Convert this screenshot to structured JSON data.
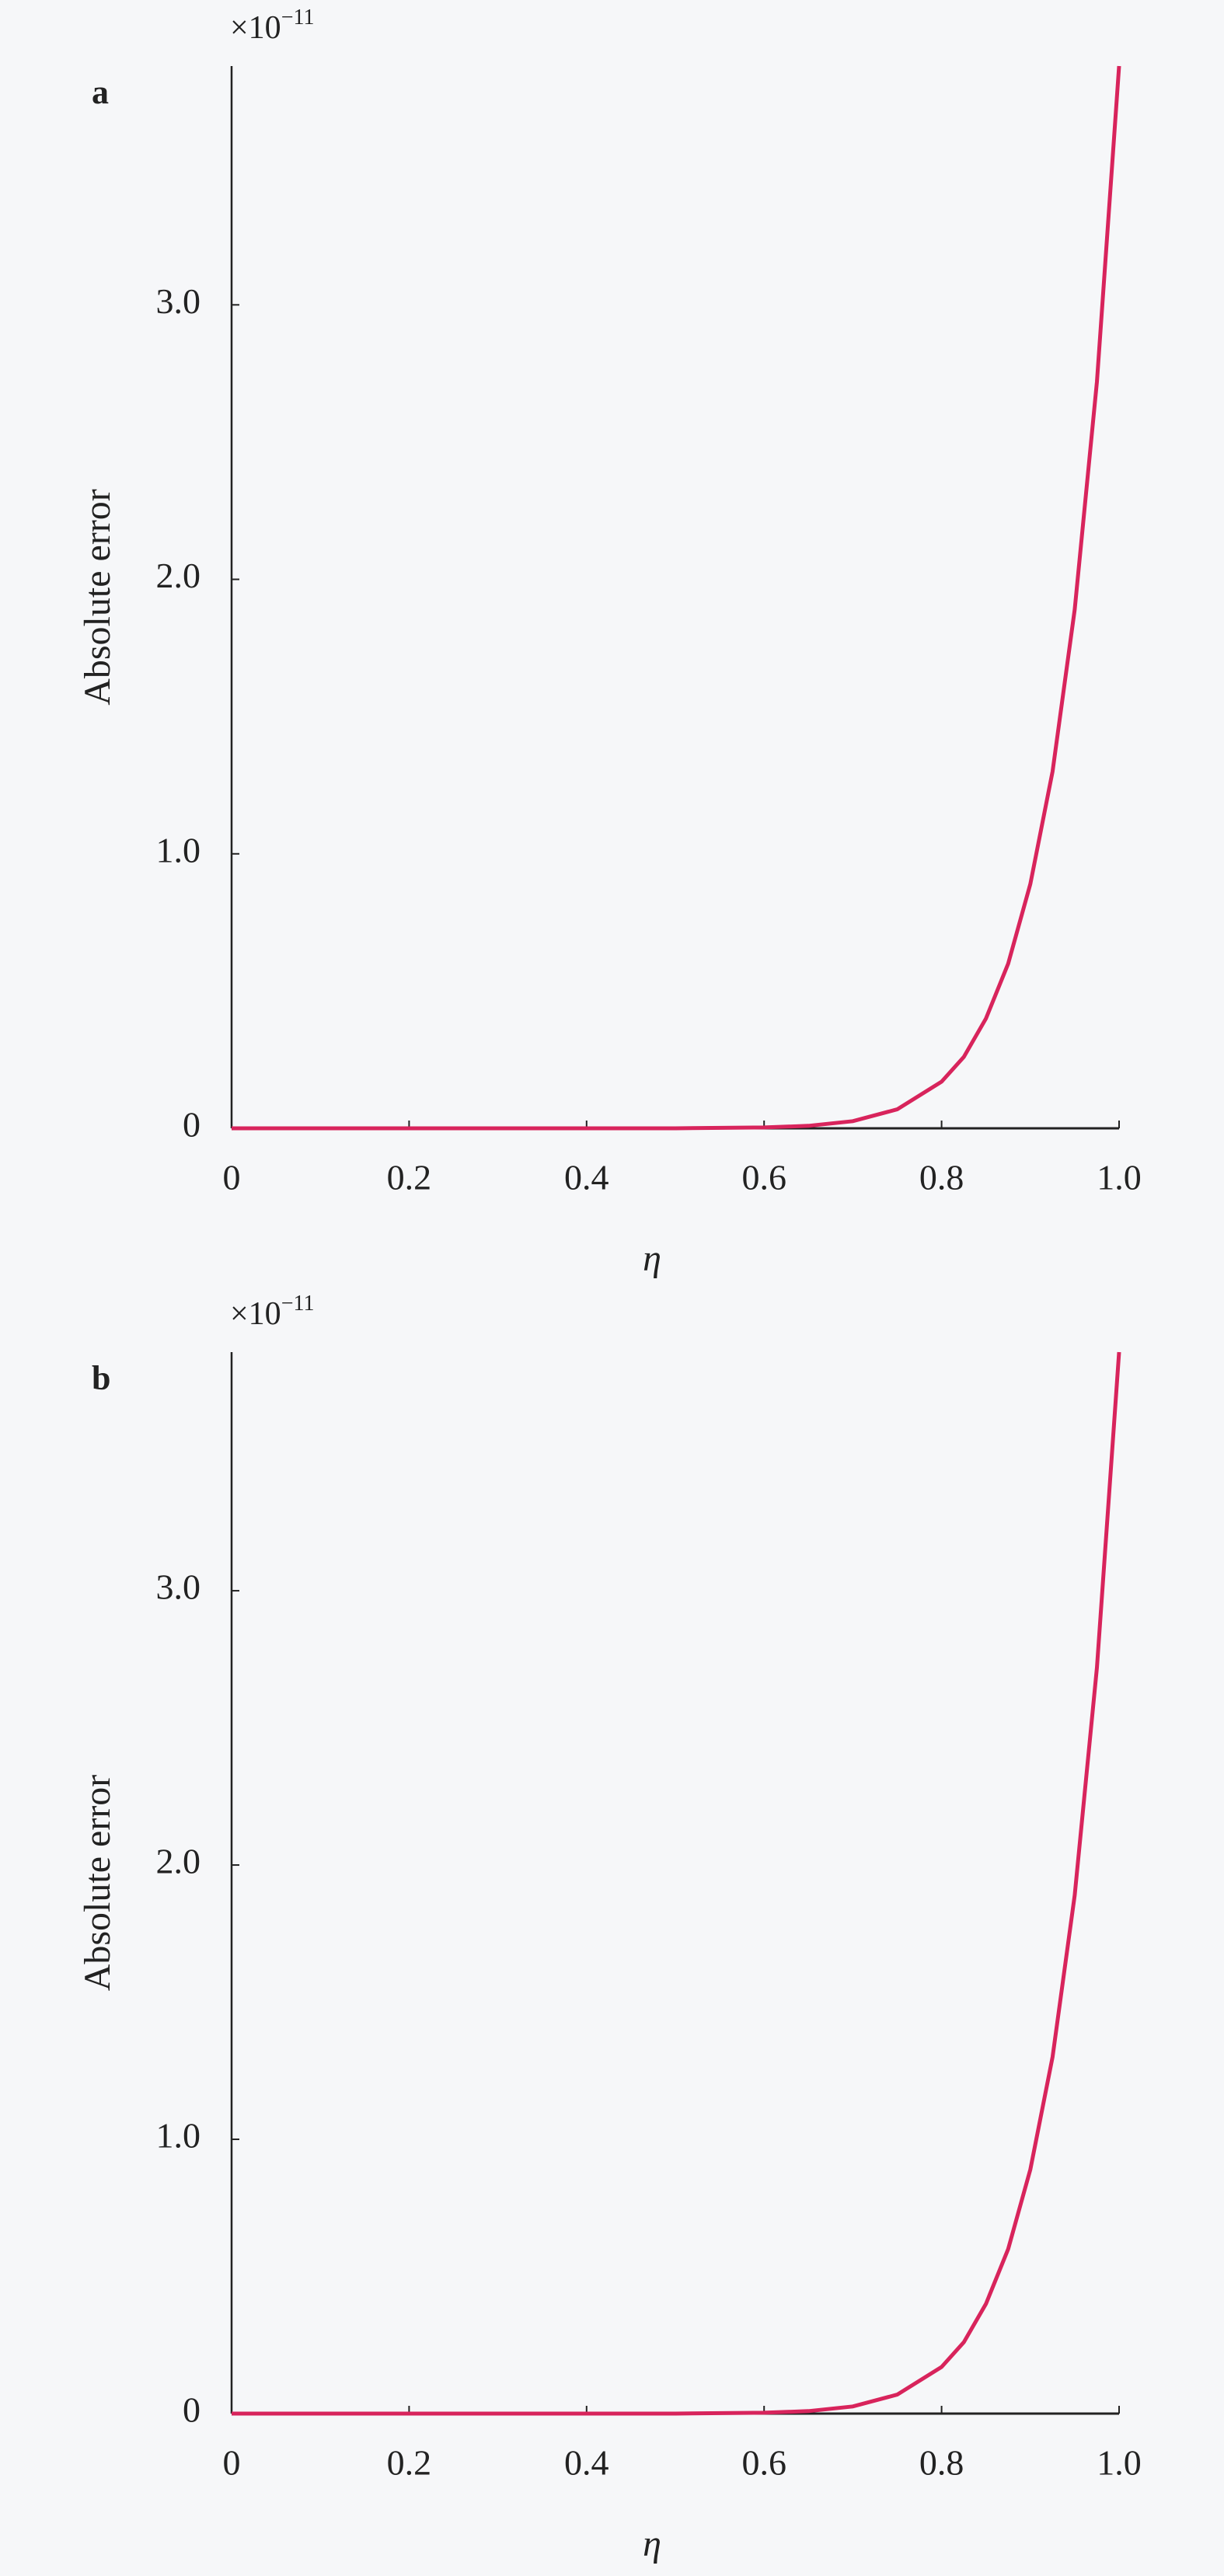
{
  "chart_data": [
    {
      "type": "line",
      "panel": "a",
      "scale_label": "×10",
      "scale_exponent": "−11",
      "x_label": "η",
      "y_label": "Absolute error",
      "color": "#d8245c",
      "x": [
        0,
        0.1,
        0.2,
        0.3,
        0.4,
        0.5,
        0.6,
        0.65,
        0.7,
        0.75,
        0.8,
        0.825,
        0.85,
        0.875,
        0.9,
        0.925,
        0.95,
        0.975,
        1.0
      ],
      "values": [
        0,
        0,
        0,
        0,
        0,
        0,
        0.003,
        0.009,
        0.026,
        0.069,
        0.17,
        0.26,
        0.4,
        0.6,
        0.89,
        1.3,
        1.89,
        2.72,
        3.87
      ],
      "xlim": [
        0,
        1
      ],
      "ylim": [
        0,
        3.87
      ],
      "xticks": [
        0,
        0.2,
        0.4,
        0.6,
        0.8,
        {
          "value": 1,
          "label": "1.0"
        }
      ],
      "yticks": [
        0,
        {
          "value": 1,
          "label": "1.0"
        },
        {
          "value": 2,
          "label": "2.0"
        },
        {
          "value": 3,
          "label": "3.0"
        }
      ]
    },
    {
      "type": "line",
      "panel": "b",
      "scale_label": "×10",
      "scale_exponent": "−11",
      "x_label": "η",
      "y_label": "Absolute error",
      "color": "#d8245c",
      "x": [
        0,
        0.1,
        0.2,
        0.3,
        0.4,
        0.5,
        0.6,
        0.65,
        0.7,
        0.75,
        0.8,
        0.825,
        0.85,
        0.875,
        0.9,
        0.925,
        0.95,
        0.975,
        1.0
      ],
      "values": [
        0,
        0,
        0,
        0,
        0,
        0,
        0.003,
        0.009,
        0.026,
        0.069,
        0.17,
        0.26,
        0.4,
        0.6,
        0.89,
        1.3,
        1.89,
        2.72,
        3.87
      ],
      "xlim": [
        0,
        1
      ],
      "ylim": [
        0,
        3.87
      ],
      "xticks": [
        0,
        0.2,
        0.4,
        0.6,
        0.8,
        {
          "value": 1,
          "label": "1.0"
        }
      ],
      "yticks": [
        0,
        {
          "value": 1,
          "label": "1.0"
        },
        {
          "value": 2,
          "label": "2.0"
        },
        {
          "value": 3,
          "label": "3.0"
        }
      ]
    }
  ]
}
